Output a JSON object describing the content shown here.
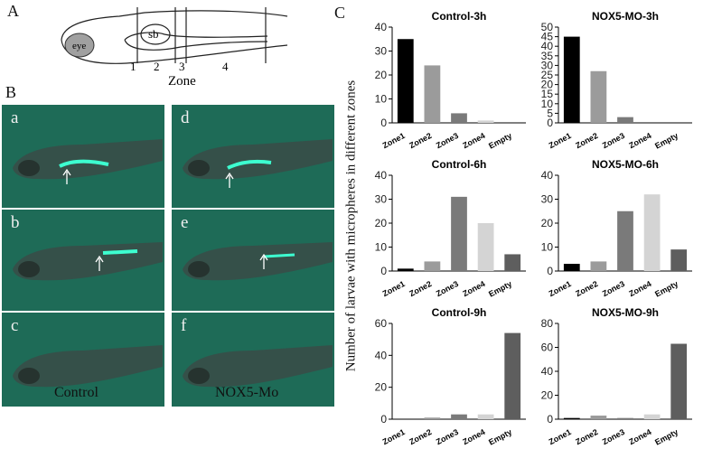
{
  "panel_labels": {
    "a": "A",
    "b": "B",
    "c": "C"
  },
  "panel_a": {
    "eye_label": "eye",
    "sb_label": "sb",
    "zone_numbers": [
      "1",
      "2",
      "3",
      "4"
    ],
    "zone_title": "Zone"
  },
  "panel_b": {
    "tile_letters": [
      "a",
      "b",
      "c",
      "d",
      "e",
      "f"
    ],
    "group_labels": [
      "Control",
      "NOX5-Mo"
    ]
  },
  "panel_c": {
    "y_axis_label": "Number of larvae with micropheres in different zones"
  },
  "colors": {
    "zone1": "#000000",
    "zone2": "#9b9b9b",
    "zone3": "#7a7a7a",
    "zone4": "#d4d4d4",
    "empty": "#5e5e5e",
    "tile_bg": "#1e6b57",
    "fluorescence": "#3dffd0"
  },
  "chart_data": [
    {
      "type": "bar",
      "title": "Control-3h",
      "categories": [
        "Zone1",
        "Zone2",
        "Zone3",
        "Zone4",
        "Empty"
      ],
      "values": [
        35,
        24,
        4,
        1,
        0
      ],
      "ylim": [
        0,
        40
      ],
      "yticks": [
        0,
        10,
        20,
        30,
        40
      ]
    },
    {
      "type": "bar",
      "title": "NOX5-MO-3h",
      "categories": [
        "Zone1",
        "Zone2",
        "Zone3",
        "Zone4",
        "Empty"
      ],
      "values": [
        45,
        27,
        3,
        0,
        0
      ],
      "ylim": [
        0,
        50
      ],
      "yticks": [
        0,
        5,
        10,
        15,
        20,
        25,
        30,
        35,
        40,
        45,
        50
      ]
    },
    {
      "type": "bar",
      "title": "Control-6h",
      "categories": [
        "Zone1",
        "Zone2",
        "Zone3",
        "Zone4",
        "Empty"
      ],
      "values": [
        1,
        4,
        31,
        20,
        7
      ],
      "ylim": [
        0,
        40
      ],
      "yticks": [
        0,
        10,
        20,
        30,
        40
      ]
    },
    {
      "type": "bar",
      "title": "NOX5-MO-6h",
      "categories": [
        "Zone1",
        "Zone2",
        "Zone3",
        "Zone4",
        "Empty"
      ],
      "values": [
        3,
        4,
        25,
        32,
        9
      ],
      "ylim": [
        0,
        40
      ],
      "yticks": [
        0,
        10,
        20,
        30,
        40
      ]
    },
    {
      "type": "bar",
      "title": "Control-9h",
      "categories": [
        "Zone1",
        "Zone2",
        "Zone3",
        "Zone4",
        "Empty"
      ],
      "values": [
        0,
        1,
        3,
        3,
        54
      ],
      "ylim": [
        0,
        60
      ],
      "yticks": [
        0,
        20,
        40,
        60
      ]
    },
    {
      "type": "bar",
      "title": "NOX5-MO-9h",
      "categories": [
        "Zone1",
        "Zone2",
        "Zone3",
        "Zone4",
        "Empty"
      ],
      "values": [
        1,
        3,
        1,
        4,
        63
      ],
      "ylim": [
        0,
        80
      ],
      "yticks": [
        0,
        20,
        40,
        60,
        80
      ]
    }
  ]
}
